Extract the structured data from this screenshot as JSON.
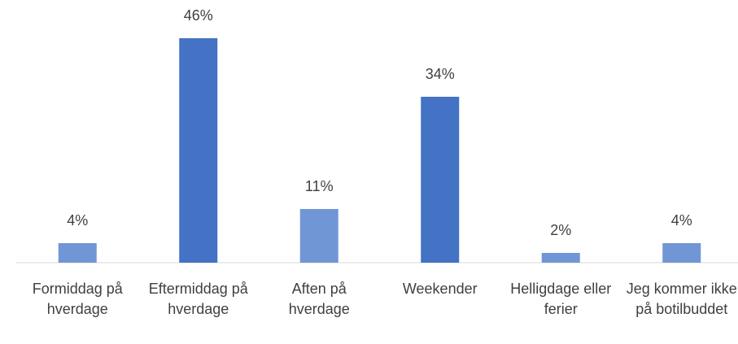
{
  "chart_data": {
    "type": "bar",
    "categories": [
      "Formiddag på hverdage",
      "Eftermiddag på hverdage",
      "Aften på hverdage",
      "Weekender",
      "Helligdage eller ferier",
      "Jeg kommer ikke på botilbuddet"
    ],
    "values": [
      4,
      46,
      11,
      34,
      2,
      4
    ],
    "value_labels": [
      "4%",
      "46%",
      "11%",
      "34%",
      "2%",
      "4%"
    ],
    "colors": [
      "#7096d6",
      "#4472c4",
      "#7096d6",
      "#4472c4",
      "#7096d6",
      "#7096d6"
    ],
    "ylim": [
      0,
      46
    ]
  }
}
